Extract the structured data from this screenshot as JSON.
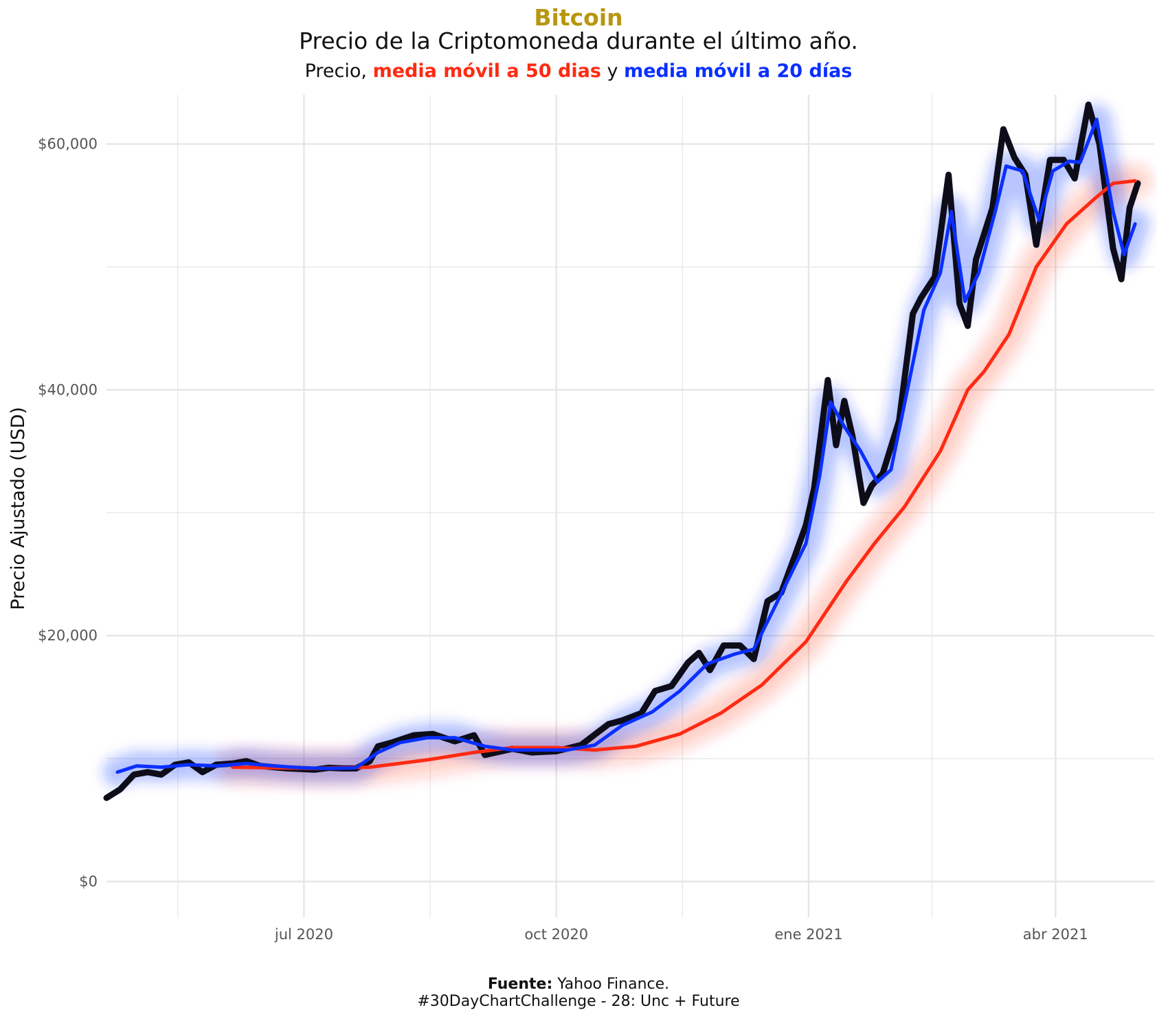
{
  "header": {
    "title": "Bitcoin",
    "subtitle": "Precio de la Criptomoneda durante el último año.",
    "legend_prefix": "Precio,",
    "legend_ma50": "media móvil a 50 dias",
    "legend_joiner": "y",
    "legend_ma20": "media móvil a 20 días"
  },
  "caption": {
    "source_label": "Fuente:",
    "source_value": "Yahoo Finance.",
    "hashtag": "#30DayChartChallenge - 28: Unc + Future"
  },
  "colors": {
    "title": "#b8960f",
    "price": "#0d0d1a",
    "ma20": "#0a2fff",
    "ma50": "#ff2a12",
    "grid": "#e6e6e6"
  },
  "chart_data": {
    "type": "line",
    "ylabel": "Precio Ajustado (USD)",
    "xlabel": "",
    "xlim": [
      "2020-04-20",
      "2021-05-07"
    ],
    "ylim": [
      0,
      64000
    ],
    "yticks": [
      0,
      20000,
      40000,
      60000
    ],
    "ytick_labels": [
      "$0",
      "$20,000",
      "$40,000",
      "$60,000"
    ],
    "xticks": [
      "2020-07-01",
      "2020-10-01",
      "2021-01-01",
      "2021-04-01"
    ],
    "xtick_labels": [
      "jul 2020",
      "oct 2020",
      "ene 2021",
      "abr 2021"
    ],
    "grid": true,
    "series": [
      {
        "name": "Precio",
        "points": [
          [
            "2020-04-20",
            6800
          ],
          [
            "2020-04-25",
            7500
          ],
          [
            "2020-04-30",
            8700
          ],
          [
            "2020-05-05",
            8900
          ],
          [
            "2020-05-10",
            8700
          ],
          [
            "2020-05-15",
            9500
          ],
          [
            "2020-05-20",
            9700
          ],
          [
            "2020-05-25",
            8900
          ],
          [
            "2020-05-30",
            9500
          ],
          [
            "2020-06-05",
            9600
          ],
          [
            "2020-06-10",
            9800
          ],
          [
            "2020-06-15",
            9400
          ],
          [
            "2020-06-20",
            9300
          ],
          [
            "2020-06-25",
            9200
          ],
          [
            "2020-06-30",
            9150
          ],
          [
            "2020-07-05",
            9100
          ],
          [
            "2020-07-10",
            9250
          ],
          [
            "2020-07-15",
            9200
          ],
          [
            "2020-07-20",
            9200
          ],
          [
            "2020-07-25",
            9800
          ],
          [
            "2020-07-28",
            11000
          ],
          [
            "2020-08-02",
            11300
          ],
          [
            "2020-08-10",
            11900
          ],
          [
            "2020-08-17",
            12000
          ],
          [
            "2020-08-25",
            11400
          ],
          [
            "2020-09-01",
            11900
          ],
          [
            "2020-09-05",
            10300
          ],
          [
            "2020-09-15",
            10800
          ],
          [
            "2020-09-22",
            10500
          ],
          [
            "2020-10-01",
            10600
          ],
          [
            "2020-10-10",
            11100
          ],
          [
            "2020-10-20",
            12800
          ],
          [
            "2020-10-25",
            13100
          ],
          [
            "2020-11-01",
            13700
          ],
          [
            "2020-11-06",
            15500
          ],
          [
            "2020-11-12",
            15900
          ],
          [
            "2020-11-18",
            17800
          ],
          [
            "2020-11-22",
            18600
          ],
          [
            "2020-11-26",
            17200
          ],
          [
            "2020-12-01",
            19200
          ],
          [
            "2020-12-07",
            19200
          ],
          [
            "2020-12-12",
            18100
          ],
          [
            "2020-12-17",
            22800
          ],
          [
            "2020-12-22",
            23500
          ],
          [
            "2020-12-27",
            26500
          ],
          [
            "2020-12-31",
            29000
          ],
          [
            "2021-01-03",
            32000
          ],
          [
            "2021-01-08",
            40800
          ],
          [
            "2021-01-11",
            35500
          ],
          [
            "2021-01-14",
            39100
          ],
          [
            "2021-01-17",
            36200
          ],
          [
            "2021-01-21",
            30800
          ],
          [
            "2021-01-24",
            32200
          ],
          [
            "2021-01-28",
            33200
          ],
          [
            "2021-02-03",
            37500
          ],
          [
            "2021-02-08",
            46200
          ],
          [
            "2021-02-11",
            47500
          ],
          [
            "2021-02-16",
            49200
          ],
          [
            "2021-02-21",
            57500
          ],
          [
            "2021-02-25",
            47000
          ],
          [
            "2021-02-28",
            45200
          ],
          [
            "2021-03-03",
            50600
          ],
          [
            "2021-03-09",
            54800
          ],
          [
            "2021-03-13",
            61200
          ],
          [
            "2021-03-17",
            58900
          ],
          [
            "2021-03-21",
            57500
          ],
          [
            "2021-03-25",
            51800
          ],
          [
            "2021-03-30",
            58700
          ],
          [
            "2021-04-04",
            58700
          ],
          [
            "2021-04-08",
            57200
          ],
          [
            "2021-04-13",
            63200
          ],
          [
            "2021-04-17",
            60000
          ],
          [
            "2021-04-22",
            51500
          ],
          [
            "2021-04-25",
            49000
          ],
          [
            "2021-04-28",
            54800
          ],
          [
            "2021-05-01",
            56800
          ]
        ]
      },
      {
        "name": "media móvil a 20 días",
        "points": [
          [
            "2020-04-24",
            8900
          ],
          [
            "2020-05-01",
            9400
          ],
          [
            "2020-05-10",
            9300
          ],
          [
            "2020-05-20",
            9500
          ],
          [
            "2020-05-30",
            9400
          ],
          [
            "2020-06-10",
            9600
          ],
          [
            "2020-06-20",
            9400
          ],
          [
            "2020-06-30",
            9250
          ],
          [
            "2020-07-10",
            9200
          ],
          [
            "2020-07-20",
            9250
          ],
          [
            "2020-07-28",
            10500
          ],
          [
            "2020-08-05",
            11300
          ],
          [
            "2020-08-15",
            11700
          ],
          [
            "2020-08-25",
            11700
          ],
          [
            "2020-09-05",
            11000
          ],
          [
            "2020-09-15",
            10700
          ],
          [
            "2020-09-25",
            10700
          ],
          [
            "2020-10-05",
            10700
          ],
          [
            "2020-10-15",
            11100
          ],
          [
            "2020-10-25",
            12700
          ],
          [
            "2020-11-05",
            13800
          ],
          [
            "2020-11-15",
            15500
          ],
          [
            "2020-11-25",
            17700
          ],
          [
            "2020-12-05",
            18500
          ],
          [
            "2020-12-12",
            18900
          ],
          [
            "2020-12-20",
            22500
          ],
          [
            "2020-12-31",
            27500
          ],
          [
            "2021-01-05",
            33000
          ],
          [
            "2021-01-09",
            39000
          ],
          [
            "2021-01-14",
            37000
          ],
          [
            "2021-01-20",
            35000
          ],
          [
            "2021-01-26",
            32500
          ],
          [
            "2021-01-31",
            33500
          ],
          [
            "2021-02-06",
            40000
          ],
          [
            "2021-02-12",
            46500
          ],
          [
            "2021-02-18",
            49500
          ],
          [
            "2021-02-22",
            54500
          ],
          [
            "2021-02-27",
            47200
          ],
          [
            "2021-03-04",
            49500
          ],
          [
            "2021-03-10",
            54500
          ],
          [
            "2021-03-14",
            58200
          ],
          [
            "2021-03-20",
            57800
          ],
          [
            "2021-03-26",
            53800
          ],
          [
            "2021-03-31",
            57800
          ],
          [
            "2021-04-06",
            58600
          ],
          [
            "2021-04-10",
            58500
          ],
          [
            "2021-04-16",
            62000
          ],
          [
            "2021-04-22",
            54500
          ],
          [
            "2021-04-26",
            51000
          ],
          [
            "2021-04-30",
            53500
          ]
        ]
      },
      {
        "name": "media móvil a 50 dias",
        "points": [
          [
            "2020-06-05",
            9300
          ],
          [
            "2020-06-20",
            9250
          ],
          [
            "2020-07-05",
            9200
          ],
          [
            "2020-07-25",
            9300
          ],
          [
            "2020-08-15",
            9900
          ],
          [
            "2020-09-01",
            10500
          ],
          [
            "2020-09-15",
            10900
          ],
          [
            "2020-10-01",
            10900
          ],
          [
            "2020-10-15",
            10700
          ],
          [
            "2020-10-30",
            11000
          ],
          [
            "2020-11-15",
            12000
          ],
          [
            "2020-11-30",
            13700
          ],
          [
            "2020-12-15",
            16000
          ],
          [
            "2020-12-31",
            19500
          ],
          [
            "2021-01-15",
            24500
          ],
          [
            "2021-01-25",
            27500
          ],
          [
            "2021-02-05",
            30500
          ],
          [
            "2021-02-18",
            35000
          ],
          [
            "2021-02-28",
            40000
          ],
          [
            "2021-03-06",
            41500
          ],
          [
            "2021-03-15",
            44500
          ],
          [
            "2021-03-25",
            50000
          ],
          [
            "2021-04-05",
            53500
          ],
          [
            "2021-04-15",
            55500
          ],
          [
            "2021-04-22",
            56800
          ],
          [
            "2021-04-30",
            57000
          ]
        ]
      }
    ]
  }
}
